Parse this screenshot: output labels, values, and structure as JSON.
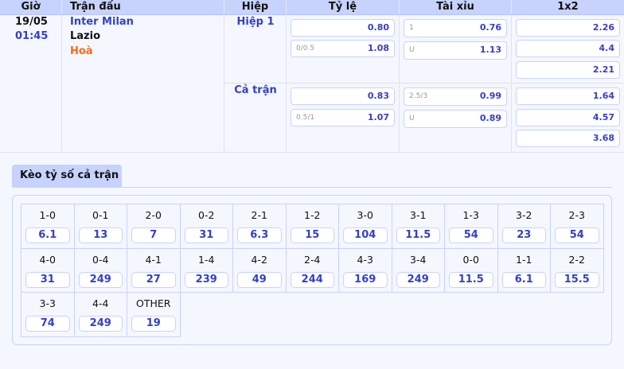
{
  "headers": [
    "Giờ",
    "Trận đấu",
    "Hiệp",
    "Tỷ lệ",
    "Tài xỉu",
    "1x2"
  ],
  "match": {
    "date": "19/05",
    "time": "01:45",
    "home": "Inter Milan",
    "away": "Lazio",
    "draw": "Hoà"
  },
  "periods": [
    {
      "name": "Hiệp 1",
      "handicap": [
        {
          "label": "",
          "value": "0.80"
        },
        {
          "label": "0/0.5",
          "value": "1.08"
        }
      ],
      "overunder": [
        {
          "label": "1",
          "value": "0.76"
        },
        {
          "label": "U",
          "value": "1.13"
        }
      ],
      "x12": [
        "2.26",
        "4.4",
        "2.21"
      ]
    },
    {
      "name": "Cả trận",
      "handicap": [
        {
          "label": "",
          "value": "0.83"
        },
        {
          "label": "0.5/1",
          "value": "1.07"
        }
      ],
      "overunder": [
        {
          "label": "2.5/3",
          "value": "0.99"
        },
        {
          "label": "U",
          "value": "0.89"
        }
      ],
      "x12": [
        "1.64",
        "4.57",
        "3.68"
      ]
    }
  ],
  "correct_score": {
    "tab": "Kèo tỷ số cả trận",
    "items": [
      {
        "s": "1-0",
        "o": "6.1"
      },
      {
        "s": "0-1",
        "o": "13"
      },
      {
        "s": "2-0",
        "o": "7"
      },
      {
        "s": "0-2",
        "o": "31"
      },
      {
        "s": "2-1",
        "o": "6.3"
      },
      {
        "s": "1-2",
        "o": "15"
      },
      {
        "s": "3-0",
        "o": "104"
      },
      {
        "s": "3-1",
        "o": "11.5"
      },
      {
        "s": "1-3",
        "o": "54"
      },
      {
        "s": "3-2",
        "o": "23"
      },
      {
        "s": "2-3",
        "o": "54"
      },
      {
        "s": "4-0",
        "o": "31"
      },
      {
        "s": "0-4",
        "o": "249"
      },
      {
        "s": "4-1",
        "o": "27"
      },
      {
        "s": "1-4",
        "o": "239"
      },
      {
        "s": "4-2",
        "o": "49"
      },
      {
        "s": "2-4",
        "o": "244"
      },
      {
        "s": "4-3",
        "o": "169"
      },
      {
        "s": "3-4",
        "o": "249"
      },
      {
        "s": "0-0",
        "o": "11.5"
      },
      {
        "s": "1-1",
        "o": "6.1"
      },
      {
        "s": "2-2",
        "o": "15.5"
      },
      {
        "s": "3-3",
        "o": "74"
      },
      {
        "s": "4-4",
        "o": "249"
      },
      {
        "s": "OTHER",
        "o": "19"
      }
    ]
  }
}
